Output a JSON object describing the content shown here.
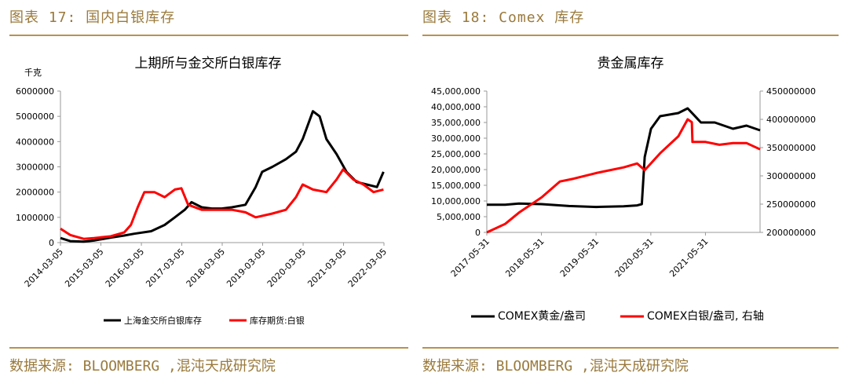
{
  "panels": {
    "left_title": "图表 17: 国内白银库存",
    "right_title": "图表 18: Comex 库存",
    "left_source": "数据来源: BLOOMBERG ,混沌天成研究院",
    "right_source": "数据来源: BLOOMBERG ,混沌天成研究院"
  },
  "colors": {
    "gold": "#b8924c",
    "black": "#000000",
    "red": "#ff0000"
  },
  "chart_data": [
    {
      "type": "line",
      "title": "上期所与金交所白银库存",
      "ylabel": "千克",
      "ylim": [
        0,
        6000000
      ],
      "yticks": [
        "0",
        "1000000",
        "2000000",
        "3000000",
        "4000000",
        "5000000",
        "6000000"
      ],
      "xlim": [
        "2014-03-05",
        "2022-03-05"
      ],
      "xticks": [
        "2014-03-05",
        "2015-03-05",
        "2016-03-05",
        "2017-03-05",
        "2018-03-05",
        "2019-03-05",
        "2020-03-05",
        "2021-03-05",
        "2022-03-05"
      ],
      "legend_position": "bottom",
      "series": [
        {
          "name": "上海金交所白银库存",
          "color": "#000000",
          "axis": "left",
          "points": [
            [
              "2014-03-05",
              180000
            ],
            [
              "2014-06-01",
              60000
            ],
            [
              "2014-10-01",
              40000
            ],
            [
              "2015-01-01",
              80000
            ],
            [
              "2015-06-01",
              200000
            ],
            [
              "2015-10-01",
              280000
            ],
            [
              "2016-01-01",
              350000
            ],
            [
              "2016-06-01",
              450000
            ],
            [
              "2016-10-01",
              700000
            ],
            [
              "2017-01-01",
              1000000
            ],
            [
              "2017-04-01",
              1300000
            ],
            [
              "2017-06-01",
              1600000
            ],
            [
              "2017-09-01",
              1400000
            ],
            [
              "2017-12-01",
              1350000
            ],
            [
              "2018-03-01",
              1350000
            ],
            [
              "2018-06-01",
              1400000
            ],
            [
              "2018-10-01",
              1500000
            ],
            [
              "2019-01-01",
              2200000
            ],
            [
              "2019-03-01",
              2800000
            ],
            [
              "2019-06-01",
              3000000
            ],
            [
              "2019-10-01",
              3300000
            ],
            [
              "2020-01-01",
              3600000
            ],
            [
              "2020-03-01",
              4100000
            ],
            [
              "2020-06-01",
              5200000
            ],
            [
              "2020-08-01",
              5000000
            ],
            [
              "2020-10-01",
              4100000
            ],
            [
              "2021-01-01",
              3500000
            ],
            [
              "2021-04-01",
              2800000
            ],
            [
              "2021-07-01",
              2400000
            ],
            [
              "2021-10-01",
              2300000
            ],
            [
              "2022-01-01",
              2200000
            ],
            [
              "2022-03-01",
              2800000
            ]
          ]
        },
        {
          "name": "库存期货:白银",
          "color": "#ff0000",
          "axis": "left",
          "points": [
            [
              "2014-03-05",
              550000
            ],
            [
              "2014-06-01",
              300000
            ],
            [
              "2014-10-01",
              150000
            ],
            [
              "2015-01-01",
              180000
            ],
            [
              "2015-06-01",
              250000
            ],
            [
              "2015-10-01",
              400000
            ],
            [
              "2015-12-01",
              700000
            ],
            [
              "2016-02-01",
              1400000
            ],
            [
              "2016-04-01",
              2000000
            ],
            [
              "2016-07-01",
              2000000
            ],
            [
              "2016-10-01",
              1800000
            ],
            [
              "2017-01-01",
              2100000
            ],
            [
              "2017-03-01",
              2150000
            ],
            [
              "2017-05-01",
              1500000
            ],
            [
              "2017-09-01",
              1300000
            ],
            [
              "2018-01-01",
              1300000
            ],
            [
              "2018-06-01",
              1300000
            ],
            [
              "2018-10-01",
              1200000
            ],
            [
              "2019-01-01",
              1000000
            ],
            [
              "2019-06-01",
              1150000
            ],
            [
              "2019-10-01",
              1300000
            ],
            [
              "2020-01-01",
              1800000
            ],
            [
              "2020-03-01",
              2300000
            ],
            [
              "2020-06-01",
              2100000
            ],
            [
              "2020-10-01",
              2000000
            ],
            [
              "2021-01-01",
              2500000
            ],
            [
              "2021-03-01",
              2900000
            ],
            [
              "2021-06-01",
              2500000
            ],
            [
              "2021-09-01",
              2300000
            ],
            [
              "2021-12-01",
              2000000
            ],
            [
              "2022-03-01",
              2100000
            ]
          ]
        }
      ]
    },
    {
      "type": "line",
      "title": "贵金属库存",
      "ylim": [
        0,
        45000000
      ],
      "yticks": [
        "0",
        "5,000,000",
        "10,000,000",
        "15,000,000",
        "20,000,000",
        "25,000,000",
        "30,000,000",
        "35,000,000",
        "40,000,000",
        "45,000,000"
      ],
      "y2lim": [
        200000000,
        450000000
      ],
      "y2ticks": [
        "200000000",
        "250000000",
        "300000000",
        "350000000",
        "400000000",
        "450000000"
      ],
      "xlim": [
        "2017-05-31",
        "2022-05-31"
      ],
      "xticks": [
        "2017-05-31",
        "2018-05-31",
        "2019-05-31",
        "2020-05-31",
        "2021-05-31"
      ],
      "legend_position": "bottom",
      "series": [
        {
          "name": "COMEX黄金/盎司",
          "color": "#000000",
          "axis": "left",
          "points": [
            [
              "2017-05-31",
              8800000
            ],
            [
              "2017-10-01",
              8800000
            ],
            [
              "2018-01-01",
              9200000
            ],
            [
              "2018-06-01",
              9000000
            ],
            [
              "2018-12-01",
              8400000
            ],
            [
              "2019-06-01",
              8100000
            ],
            [
              "2019-12-01",
              8300000
            ],
            [
              "2020-03-01",
              8600000
            ],
            [
              "2020-04-01",
              9000000
            ],
            [
              "2020-04-20",
              24000000
            ],
            [
              "2020-06-01",
              33000000
            ],
            [
              "2020-08-01",
              37000000
            ],
            [
              "2020-12-01",
              38000000
            ],
            [
              "2021-02-01",
              39500000
            ],
            [
              "2021-05-01",
              35000000
            ],
            [
              "2021-08-01",
              35000000
            ],
            [
              "2021-12-01",
              33000000
            ],
            [
              "2022-03-01",
              34000000
            ],
            [
              "2022-05-31",
              32500000
            ]
          ]
        },
        {
          "name": "COMEX白银/盎司, 右轴",
          "color": "#ff0000",
          "axis": "right",
          "points": [
            [
              "2017-05-31",
              200000000
            ],
            [
              "2017-10-01",
              215000000
            ],
            [
              "2018-01-01",
              235000000
            ],
            [
              "2018-06-01",
              262000000
            ],
            [
              "2018-10-01",
              290000000
            ],
            [
              "2019-01-01",
              295000000
            ],
            [
              "2019-06-01",
              305000000
            ],
            [
              "2019-12-01",
              315000000
            ],
            [
              "2020-03-01",
              322000000
            ],
            [
              "2020-04-20",
              310000000
            ],
            [
              "2020-08-01",
              340000000
            ],
            [
              "2020-12-01",
              370000000
            ],
            [
              "2021-02-01",
              400000000
            ],
            [
              "2021-03-01",
              395000000
            ],
            [
              "2021-03-05",
              360000000
            ],
            [
              "2021-06-01",
              360000000
            ],
            [
              "2021-09-01",
              355000000
            ],
            [
              "2021-12-01",
              358000000
            ],
            [
              "2022-03-01",
              358000000
            ],
            [
              "2022-05-31",
              347000000
            ]
          ]
        }
      ]
    }
  ]
}
